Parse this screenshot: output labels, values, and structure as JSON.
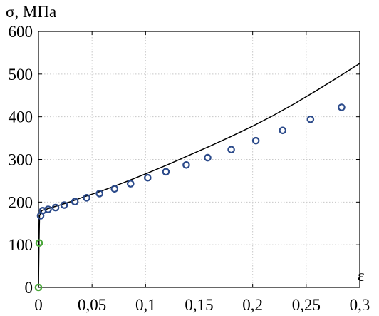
{
  "chart_data": {
    "type": "line",
    "ylabel": "σ, МПа",
    "xlabel": "ε",
    "xlim": [
      0,
      0.3
    ],
    "ylim": [
      0,
      600
    ],
    "x_ticks": [
      0,
      0.05,
      0.1,
      0.15,
      0.2,
      0.25,
      0.3
    ],
    "x_tick_labels": [
      "0",
      "0,05",
      "0,1",
      "0,15",
      "0,2",
      "0,25",
      "0,3"
    ],
    "y_ticks": [
      0,
      100,
      200,
      300,
      400,
      500,
      600
    ],
    "y_tick_labels": [
      "0",
      "100",
      "200",
      "300",
      "400",
      "500",
      "600"
    ],
    "grid": true,
    "colors": {
      "line": "#000000",
      "elastic_markers": "#4aa83a",
      "plastic_markers": "#2b4a8a",
      "grid": "#c8c8c8"
    },
    "line": {
      "x": [
        0,
        0.0005,
        0.001,
        0.003,
        0.007,
        0.012,
        0.02,
        0.03,
        0.04,
        0.06,
        0.08,
        0.1,
        0.12,
        0.14,
        0.16,
        0.18,
        0.2,
        0.22,
        0.24,
        0.26,
        0.28,
        0.3
      ],
      "y": [
        0,
        104,
        168,
        180,
        183,
        187,
        193,
        201,
        210,
        227,
        246,
        266,
        287,
        309,
        331,
        354,
        378,
        404,
        432,
        462,
        493,
        525
      ]
    },
    "series": [
      {
        "x": [
          0,
          0.0007
        ],
        "y": [
          0,
          104
        ]
      },
      {
        "x": [
          0.002,
          0.004,
          0.009,
          0.016,
          0.024,
          0.034,
          0.045,
          0.057,
          0.071,
          0.086,
          0.102,
          0.119,
          0.138,
          0.158,
          0.18,
          0.203,
          0.228,
          0.254,
          0.283
        ],
        "y": [
          168,
          180,
          183,
          187,
          193,
          201,
          210,
          220,
          231,
          243,
          257,
          271,
          287,
          304,
          323,
          344,
          368,
          394,
          422
        ]
      }
    ]
  }
}
